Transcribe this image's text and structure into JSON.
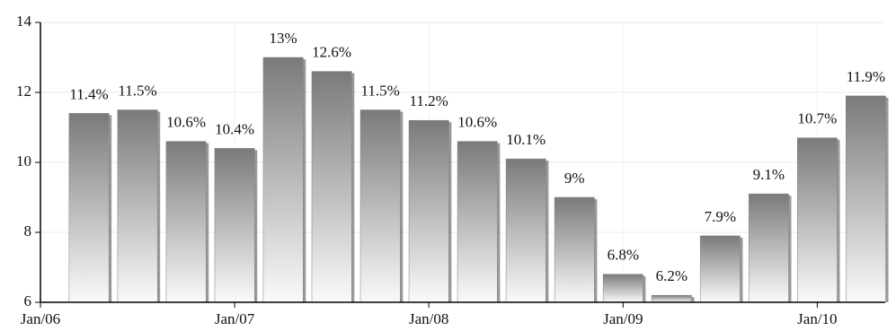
{
  "chart_data": {
    "type": "bar",
    "categories": [
      null,
      null,
      null,
      null,
      null,
      null,
      null,
      null,
      null,
      null,
      null,
      null,
      null,
      null,
      null,
      null,
      null
    ],
    "values": [
      11.4,
      11.5,
      10.6,
      10.4,
      13,
      12.6,
      11.5,
      11.2,
      10.6,
      10.1,
      9,
      6.8,
      6.2,
      7.9,
      9.1,
      10.7,
      11.9
    ],
    "value_labels": [
      "11.4%",
      "11.5%",
      "10.6%",
      "10.4%",
      "13%",
      "12.6%",
      "11.5%",
      "11.2%",
      "10.6%",
      "10.1%",
      "9%",
      "6.8%",
      "6.2%",
      "7.9%",
      "9.1%",
      "10.7%",
      "11.9%"
    ],
    "color": "#808080",
    "xlim": [
      -1,
      16.4
    ],
    "xticks": [
      {
        "value": -1,
        "label": "Jan/06"
      },
      {
        "value": 3,
        "label": "Jan/07"
      },
      {
        "value": 7,
        "label": "Jan/08"
      },
      {
        "value": 11,
        "label": "Jan/09"
      },
      {
        "value": 15,
        "label": "Jan/10"
      }
    ],
    "ylim": [
      6,
      14
    ],
    "yticks": [
      6,
      8,
      10,
      12,
      14
    ],
    "grid": true
  }
}
